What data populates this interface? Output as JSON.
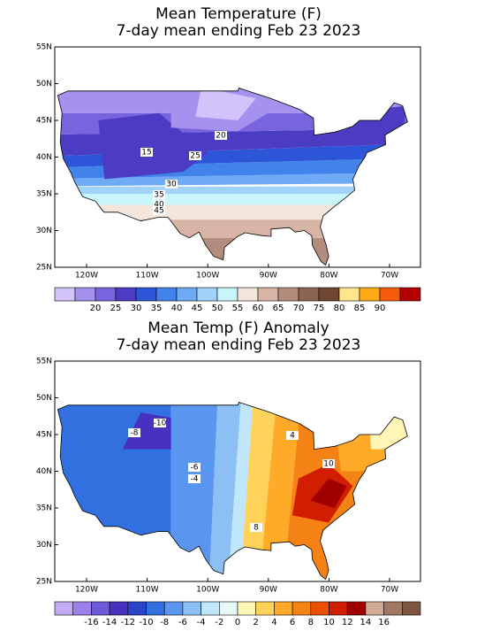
{
  "panels": [
    {
      "title": [
        "Mean Temperature (F)",
        "7-day mean ending Feb 23 2023"
      ],
      "lat_labels": [
        "55N",
        "50N",
        "45N",
        "40N",
        "35N",
        "30N",
        "25N"
      ],
      "lon_labels": [
        "120W",
        "110W",
        "100W",
        "90W",
        "80W",
        "70W"
      ],
      "colorbar": {
        "colors": [
          "#d2c3fa",
          "#a591ee",
          "#7864dc",
          "#4b3cc3",
          "#2d55d7",
          "#4182eb",
          "#6eaaf5",
          "#a0d2fa",
          "#c8f5fa",
          "#f5e6dc",
          "#d7b4a5",
          "#b48c7d",
          "#8c6450",
          "#6e4632",
          "#ffe68c",
          "#ffaa14",
          "#f55a0a",
          "#b40000"
        ],
        "labels": [
          20,
          25,
          30,
          35,
          40,
          45,
          50,
          55,
          60,
          65,
          70,
          75,
          80,
          85,
          90
        ]
      },
      "contour_labels": [
        20,
        15,
        25,
        30,
        35,
        40,
        45
      ]
    },
    {
      "title": [
        "Mean Temp (F) Anomaly",
        "7-day mean ending Feb 23 2023"
      ],
      "lat_labels": [
        "55N",
        "50N",
        "45N",
        "40N",
        "35N",
        "30N",
        "25N"
      ],
      "lon_labels": [
        "120W",
        "110W",
        "100W",
        "90W",
        "80W",
        "70W"
      ],
      "colorbar": {
        "colors": [
          "#c3aaf5",
          "#9a82ea",
          "#6e5ad8",
          "#4632be",
          "#2a46c8",
          "#3270e0",
          "#5a96f0",
          "#8cc0f5",
          "#bfe6fa",
          "#e6fafa",
          "#fff5b4",
          "#ffd25a",
          "#ffaa28",
          "#f58214",
          "#eb5000",
          "#d21e00",
          "#a00000",
          "#d2aa96",
          "#a07864",
          "#7d5541"
        ],
        "labels": [
          -16,
          -14,
          -12,
          -10,
          -8,
          -6,
          -4,
          -2,
          0,
          2,
          4,
          6,
          8,
          10,
          12,
          14,
          16
        ]
      },
      "contour_labels": [
        -10,
        -8,
        4,
        -6,
        -4,
        10,
        8
      ]
    }
  ]
}
